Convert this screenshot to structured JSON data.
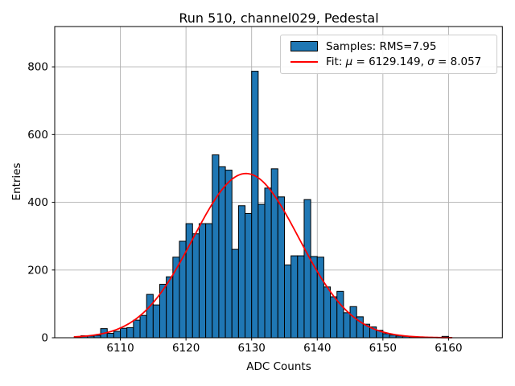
{
  "figure": {
    "background": "#ffffff"
  },
  "chart_data": {
    "type": "bar",
    "subtype": "histogram",
    "title": "Run 510, channel029, Pedestal",
    "xlabel": "ADC Counts",
    "ylabel": "Entries",
    "xlim": [
      6100.0,
      6168.2
    ],
    "ylim": [
      0,
      919
    ],
    "xticks": [
      6110,
      6120,
      6130,
      6140,
      6150,
      6160
    ],
    "yticks": [
      0,
      200,
      400,
      600,
      800
    ],
    "grid": true,
    "grid_color": "#b0b0b0",
    "axes_edge_color": "#000000",
    "bar_color": "#1f77b4",
    "bar_edge_color": "#000000",
    "bin_width": 1,
    "bin_start": 6103,
    "counts": [
      3,
      6,
      5,
      7,
      27,
      13,
      19,
      28,
      30,
      52,
      66,
      128,
      97,
      158,
      180,
      238,
      285,
      337,
      307,
      337,
      337,
      540,
      505,
      495,
      261,
      390,
      367,
      787,
      394,
      442,
      499,
      416,
      215,
      242,
      242,
      408,
      240,
      238,
      150,
      121,
      137,
      74,
      92,
      62,
      40,
      32,
      22,
      12,
      8,
      5,
      4,
      3,
      0,
      0,
      0,
      0,
      4
    ],
    "fit": {
      "model": "gaussian",
      "mu": 6129.149,
      "sigma": 8.057,
      "amplitude": 485,
      "x_range": [
        6103,
        6160.5
      ],
      "color": "#ff0000",
      "line_width": 1.8
    },
    "legend": {
      "position": "upper right",
      "entries": [
        {
          "label": "Samples: RMS=7.95",
          "swatch": "patch",
          "color": "#1f77b4"
        },
        {
          "label": "Fit: μ = 6129.149, σ = 8.057",
          "swatch": "line",
          "color": "#ff0000"
        }
      ]
    },
    "stats": {
      "rms": 7.95,
      "fit_mu": 6129.149,
      "fit_sigma": 8.057
    }
  }
}
